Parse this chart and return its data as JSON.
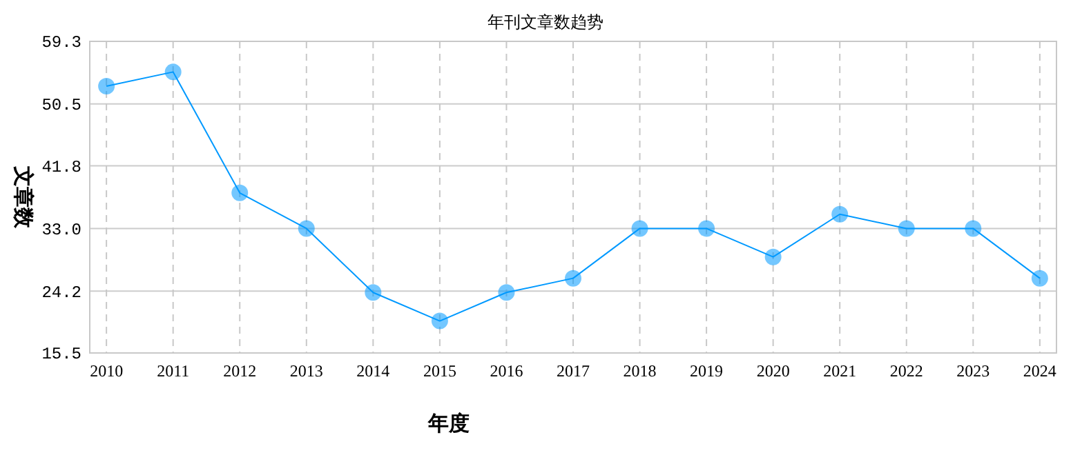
{
  "chart_data": {
    "type": "line",
    "title": "年刊文章数趋势",
    "xlabel": "年度",
    "ylabel": "文章数",
    "categories": [
      "2010",
      "2011",
      "2012",
      "2013",
      "2014",
      "2015",
      "2016",
      "2017",
      "2018",
      "2019",
      "2020",
      "2021",
      "2022",
      "2023",
      "2024"
    ],
    "series": [
      {
        "color": "#0099ff",
        "values": [
          53,
          55,
          38,
          33,
          24,
          20,
          24,
          26,
          33,
          33,
          29,
          35,
          33,
          33,
          26
        ]
      }
    ],
    "ylim": [
      15.5,
      59.3
    ],
    "yticks": [
      {
        "value": 15.5,
        "label": "15.5"
      },
      {
        "value": 24.2,
        "label": "24.2"
      },
      {
        "value": 33,
        "label": "33.0"
      },
      {
        "value": 41.8,
        "label": "41.8"
      },
      {
        "value": 50.5,
        "label": "50.5"
      },
      {
        "value": 59.3,
        "label": "59.3"
      }
    ],
    "grid": true,
    "marker": "circle",
    "line_style": "solid"
  }
}
